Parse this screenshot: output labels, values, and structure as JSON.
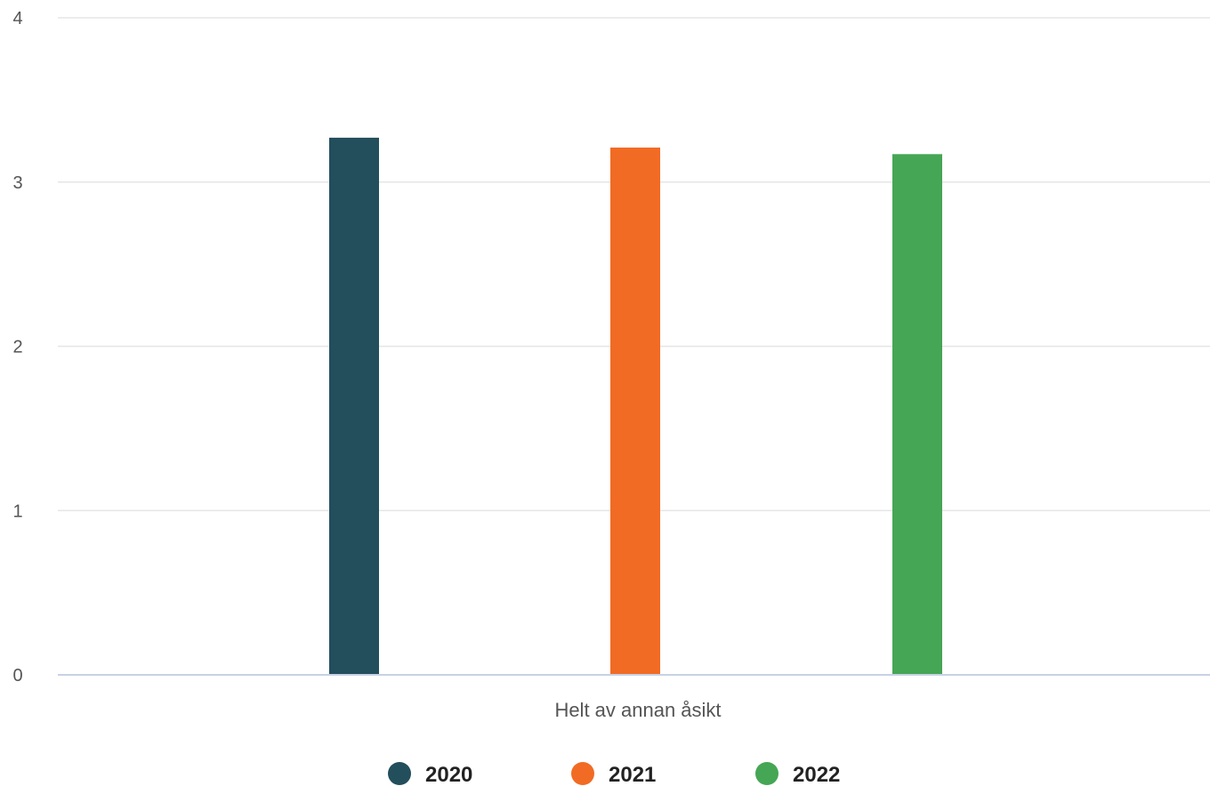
{
  "chart_data": {
    "type": "bar",
    "categories": [
      "Helt av annan åsikt"
    ],
    "series": [
      {
        "name": "2020",
        "values": [
          3.27
        ],
        "color": "#234e5c"
      },
      {
        "name": "2021",
        "values": [
          3.21
        ],
        "color": "#f16b24"
      },
      {
        "name": "2022",
        "values": [
          3.17
        ],
        "color": "#45a655"
      }
    ],
    "ylim": [
      0,
      4
    ],
    "yticks": [
      "0",
      "1",
      "2",
      "3",
      "4"
    ],
    "grid": true,
    "legend_position": "bottom-center",
    "colors": {
      "grid": "#e6e6e6",
      "axis": "#c8d2e6",
      "text": "#555555"
    }
  }
}
